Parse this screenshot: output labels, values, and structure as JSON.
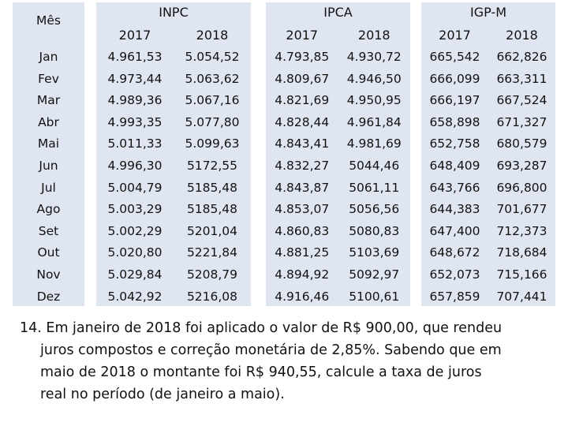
{
  "table": {
    "month_header": "Mês",
    "months": [
      "Jan",
      "Fev",
      "Mar",
      "Abr",
      "Mai",
      "Jun",
      "Jul",
      "Ago",
      "Set",
      "Out",
      "Nov",
      "Dez"
    ],
    "groups": [
      {
        "title": "INPC",
        "years": [
          "2017",
          "2018"
        ],
        "values_2017": [
          "4.961,53",
          "4.973,44",
          "4.989,36",
          "4.993,35",
          "5.011,33",
          "4.996,30",
          "5.004,79",
          "5.003,29",
          "5.002,29",
          "5.020,80",
          "5.029,84",
          "5.042,92"
        ],
        "values_2018": [
          "5.054,52",
          "5.063,62",
          "5.067,16",
          "5.077,80",
          "5.099,63",
          "5172,55",
          "5185,48",
          "5185,48",
          "5201,04",
          "5221,84",
          "5208,79",
          "5216,08"
        ]
      },
      {
        "title": "IPCA",
        "years": [
          "2017",
          "2018"
        ],
        "values_2017": [
          "4.793,85",
          "4.809,67",
          "4.821,69",
          "4.828,44",
          "4.843,41",
          "4.832,27",
          "4.843,87",
          "4.853,07",
          "4.860,83",
          "4.881,25",
          "4.894,92",
          "4.916,46"
        ],
        "values_2018": [
          "4.930,72",
          "4.946,50",
          "4.950,95",
          "4.961,84",
          "4.981,69",
          "5044,46",
          "5061,11",
          "5056,56",
          "5080,83",
          "5103,69",
          "5092,97",
          "5100,61"
        ]
      },
      {
        "title": "IGP-M",
        "years": [
          "2017",
          "2018"
        ],
        "values_2017": [
          "665,542",
          "666,099",
          "666,197",
          "658,898",
          "652,758",
          "648,409",
          "643,766",
          "644,383",
          "647,400",
          "648,672",
          "652,073",
          "657,859"
        ],
        "values_2018": [
          "662,826",
          "663,311",
          "667,524",
          "671,327",
          "680,579",
          "693,287",
          "696,800",
          "701,677",
          "712,373",
          "718,684",
          "715,166",
          "707,441"
        ]
      }
    ]
  },
  "question": {
    "lines": [
      "14. Em janeiro de 2018 foi aplicado o valor de R$ 900,00, que rendeu",
      "juros compostos e correção monetária de 2,85%. Sabendo que em",
      "maio de 2018 o montante foi R$ 940,55, calcule a taxa de juros",
      "real no período (de janeiro a maio)."
    ]
  }
}
